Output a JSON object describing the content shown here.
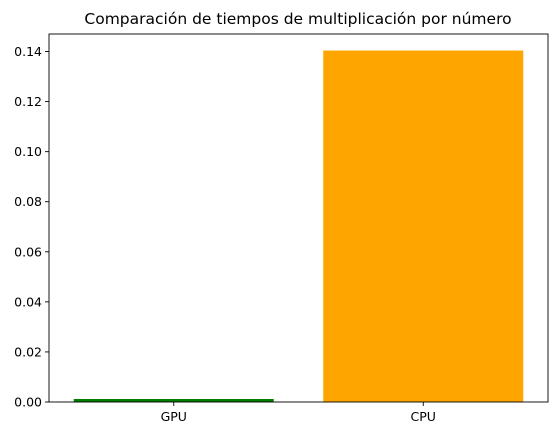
{
  "chart_data": {
    "type": "bar",
    "title": "Comparación de tiempos de multiplicación por número",
    "xlabel": "",
    "ylabel": "",
    "categories": [
      "GPU",
      "CPU"
    ],
    "values": [
      0.0012,
      0.1404
    ],
    "colors": [
      "#008000",
      "#FFA500"
    ],
    "ylim": [
      0,
      0.147
    ],
    "yticks": [
      0.0,
      0.02,
      0.04,
      0.06,
      0.08,
      0.1,
      0.12,
      0.14
    ],
    "ytick_labels": [
      "0.00",
      "0.02",
      "0.04",
      "0.06",
      "0.08",
      "0.10",
      "0.12",
      "0.14"
    ],
    "grid": false,
    "legend": "none"
  }
}
